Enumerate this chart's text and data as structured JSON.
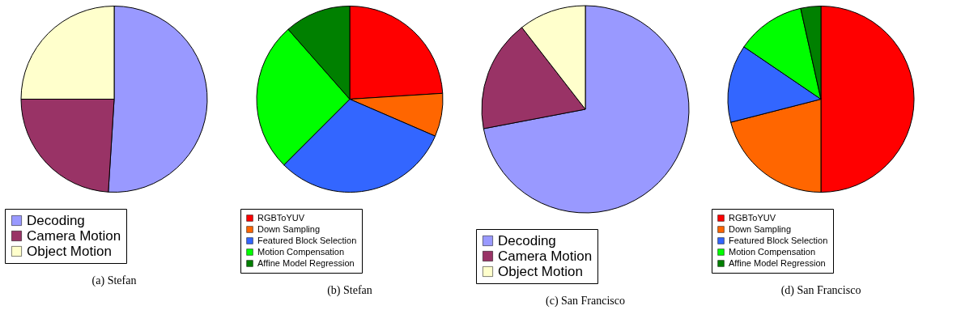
{
  "chart_data": [
    {
      "type": "pie",
      "title": "(a) Stefan",
      "legend": "bottom",
      "categories": [
        "Decoding",
        "Camera Motion",
        "Object Motion"
      ],
      "values": [
        51,
        24,
        25
      ],
      "colors": [
        "#9999ff",
        "#993366",
        "#ffffcc"
      ]
    },
    {
      "type": "pie",
      "title": "(b) Stefan",
      "legend": "bottom",
      "categories": [
        "RGBToYUV",
        "Down Sampling",
        "Featured Block Selection",
        "Motion Compensation",
        "Affine Model Regression"
      ],
      "values": [
        24,
        7.5,
        31,
        26,
        11.5
      ],
      "colors": [
        "#ff0000",
        "#ff6600",
        "#3366ff",
        "#00ff00",
        "#008000"
      ]
    },
    {
      "type": "pie",
      "title": "(c) San Francisco",
      "legend": "bottom",
      "categories": [
        "Decoding",
        "Camera Motion",
        "Object Motion"
      ],
      "values": [
        72,
        17.5,
        10.5
      ],
      "colors": [
        "#9999ff",
        "#993366",
        "#ffffcc"
      ]
    },
    {
      "type": "pie",
      "title": "(d) San Francisco",
      "legend": "bottom",
      "categories": [
        "RGBToYUV",
        "Down Sampling",
        "Featured Block Selection",
        "Motion Compensation",
        "Affine Model Regression"
      ],
      "values": [
        50,
        21,
        13.5,
        12,
        3.5
      ],
      "colors": [
        "#ff0000",
        "#ff6600",
        "#3366ff",
        "#00ff00",
        "#008000"
      ]
    }
  ]
}
